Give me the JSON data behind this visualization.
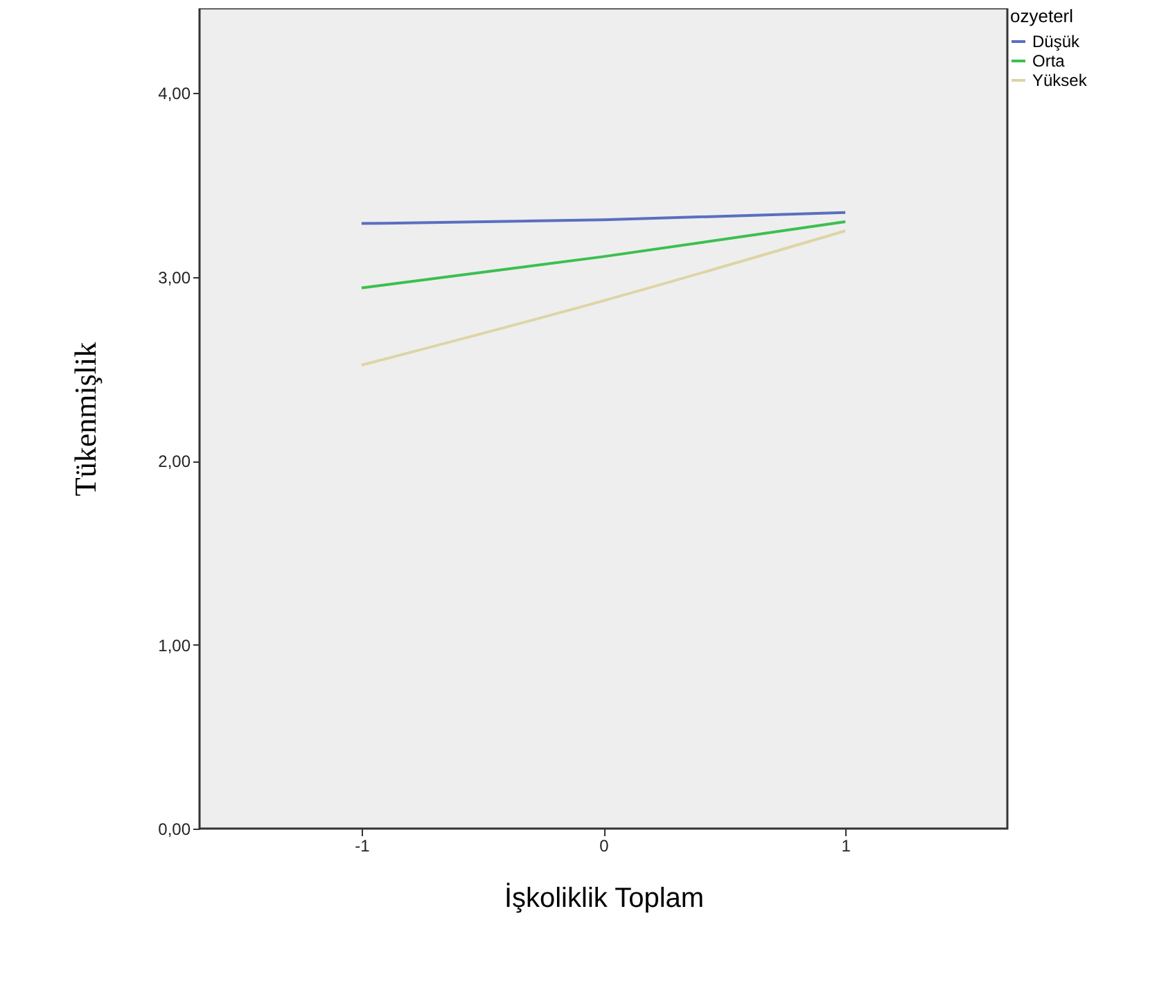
{
  "chart_data": {
    "type": "line",
    "xlabel": "İşkoliklik Toplam",
    "ylabel": "Tükenmişlik",
    "legend_title": "ozyeterl",
    "x": [
      -1,
      0,
      1
    ],
    "series": [
      {
        "name": "Düşük",
        "color": "#5a6fbf",
        "values": [
          3.29,
          3.31,
          3.35
        ]
      },
      {
        "name": "Orta",
        "color": "#3cbf4f",
        "values": [
          2.94,
          3.11,
          3.3
        ]
      },
      {
        "name": "Yüksek",
        "color": "#ddd5a5",
        "values": [
          2.52,
          2.87,
          3.25
        ]
      }
    ],
    "xlim": [
      -1.67,
      1.67
    ],
    "xticks": [
      -1,
      0,
      1
    ],
    "ylim": [
      0,
      4.46
    ],
    "yticks": [
      {
        "value": 0,
        "label": "0,00"
      },
      {
        "value": 1,
        "label": "1,00"
      },
      {
        "value": 2,
        "label": "2,00"
      },
      {
        "value": 3,
        "label": "3,00"
      },
      {
        "value": 4,
        "label": "4,00"
      }
    ],
    "grid": false,
    "legend": "top right",
    "marker": "none",
    "line_style": "solid"
  }
}
